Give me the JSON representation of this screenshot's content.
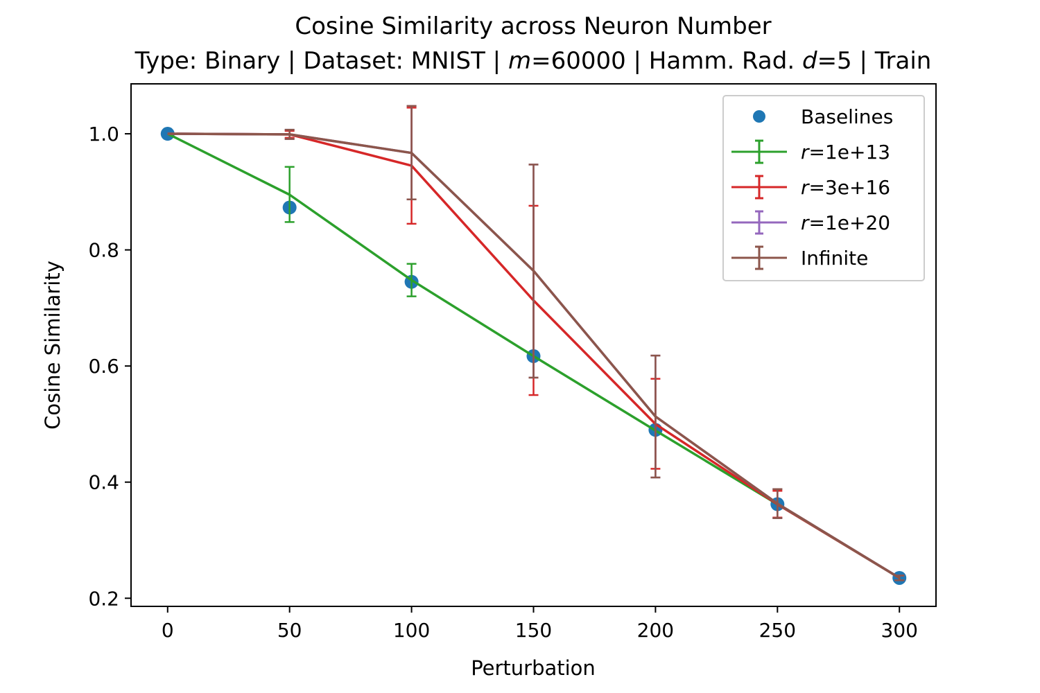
{
  "chart_data": {
    "type": "line",
    "title": "Cosine Similarity across Neuron Number",
    "subtitle": {
      "before_m": "Type: Binary | Dataset: MNIST | ",
      "m_var": "m",
      "m_rest": "=60000 | Hamm. Rad. ",
      "d_var": "d",
      "d_rest": "=5 | Train"
    },
    "xlabel": "Perturbation",
    "ylabel": "Cosine Similarity",
    "xlim": [
      -15,
      315
    ],
    "ylim": [
      0.186,
      1.086
    ],
    "xticks": [
      0,
      50,
      100,
      150,
      200,
      250,
      300
    ],
    "xtick_labels": [
      "0",
      "50",
      "100",
      "150",
      "200",
      "250",
      "300"
    ],
    "yticks": [
      0.2,
      0.4,
      0.6,
      0.8,
      1.0
    ],
    "ytick_labels": [
      "0.2",
      "0.4",
      "0.6",
      "0.8",
      "1.0"
    ],
    "grid": false,
    "legend_position": "top-right",
    "x": [
      0,
      50,
      100,
      150,
      200,
      250,
      300
    ],
    "baselines": {
      "name": "Baselines",
      "color": "#1f77b4",
      "values": [
        1.0,
        0.873,
        0.745,
        0.617,
        0.49,
        0.362,
        0.235
      ]
    },
    "series": [
      {
        "name_var": "r",
        "name_rest": "=1e+13",
        "color": "#2ca02c",
        "values": [
          1.0,
          0.895,
          0.748,
          0.617,
          0.489,
          0.362,
          0.235
        ],
        "err_low": [
          1.0,
          0.848,
          0.72,
          0.617,
          0.489,
          0.362,
          0.235
        ],
        "err_high": [
          1.0,
          0.943,
          0.776,
          0.617,
          0.489,
          0.362,
          0.235
        ]
      },
      {
        "name_var": "r",
        "name_rest": "=3e+16",
        "color": "#d62728",
        "values": [
          1.0,
          0.999,
          0.945,
          0.713,
          0.5,
          0.362,
          0.235
        ],
        "err_low": [
          1.0,
          0.993,
          0.845,
          0.55,
          0.423,
          0.339,
          0.231
        ],
        "err_high": [
          1.0,
          1.005,
          1.045,
          0.876,
          0.578,
          0.385,
          0.239
        ]
      },
      {
        "name_var": "r",
        "name_rest": "=1e+20",
        "color": "#9467bd",
        "values": [
          1.0,
          0.999,
          0.967,
          0.764,
          0.513,
          0.363,
          0.235
        ],
        "err_low": [
          1.0,
          0.991,
          0.887,
          0.58,
          0.408,
          0.338,
          0.231
        ],
        "err_high": [
          1.0,
          1.007,
          1.048,
          0.947,
          0.618,
          0.388,
          0.239
        ]
      },
      {
        "name": "Infinite",
        "color": "#8c564b",
        "values": [
          1.0,
          0.999,
          0.967,
          0.764,
          0.513,
          0.363,
          0.235
        ],
        "err_low": [
          1.0,
          0.991,
          0.887,
          0.58,
          0.408,
          0.338,
          0.231
        ],
        "err_high": [
          1.0,
          1.007,
          1.048,
          0.947,
          0.618,
          0.388,
          0.239
        ]
      }
    ]
  }
}
